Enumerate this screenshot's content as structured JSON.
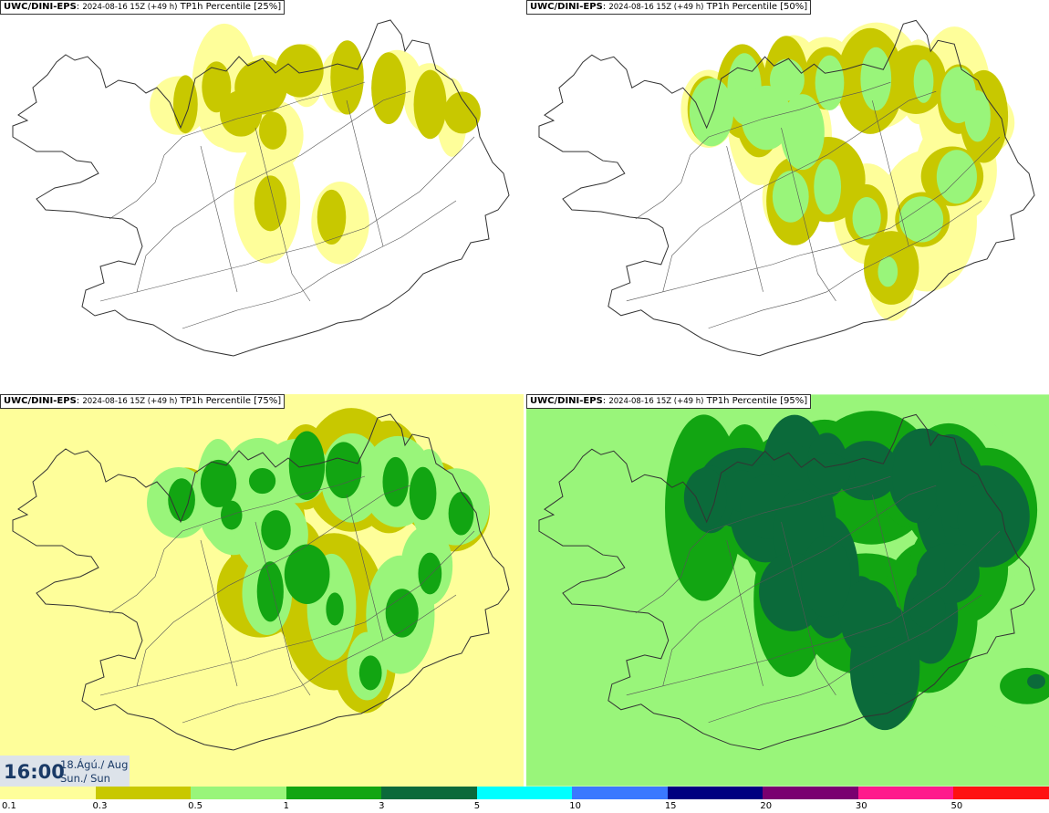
{
  "panels": [
    {
      "source": "UWC/DINI-EPS",
      "info": "2024-08-16 15Z (+49 h)",
      "field": "TP1h Percentile [25%]",
      "level": 1
    },
    {
      "source": "UWC/DINI-EPS",
      "info": "2024-08-16 15Z (+49 h)",
      "field": "TP1h Percentile [50%]",
      "level": 2
    },
    {
      "source": "UWC/DINI-EPS",
      "info": "2024-08-16 15Z (+49 h)",
      "field": "TP1h Percentile [75%]",
      "level": 3
    },
    {
      "source": "UWC/DINI-EPS",
      "info": "2024-08-16 15Z (+49 h)",
      "field": "TP1h Percentile [95%]",
      "level": 4
    }
  ],
  "valid_time": {
    "time": "16:00",
    "date": "18.Ágú./ Aug",
    "day": "Sun./ Sun"
  },
  "legend": {
    "colors": [
      "#fefe9a",
      "#c8c800",
      "#99f57a",
      "#12a512",
      "#0b6a3a",
      "#00ffff",
      "#3a78ff",
      "#000080",
      "#7a0070",
      "#ff1a8c",
      "#ff1111"
    ],
    "labels": [
      "0.1",
      "0.3",
      "0.5",
      "1",
      "3",
      "5",
      "10",
      "15",
      "20",
      "30",
      "50"
    ]
  }
}
